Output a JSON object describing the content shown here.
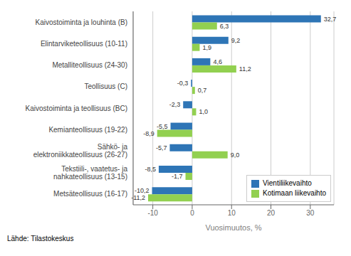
{
  "chart_data": {
    "type": "bar",
    "orientation": "horizontal",
    "categories": [
      "Kaivostoiminta ja louhinta (B)",
      "Elintarviketeollisuus (10-11)",
      "Metalliteollisuus (24-30)",
      "Teollisuus (C)",
      "Kaivostoiminta ja teollisuus (BC)",
      "Kemianteollisuus (19-22)",
      "Sähkö- ja\nelektroniikkateollisuus (26-27)",
      "Tekstiili-, vaatetus- ja\nnahkateollisuus (13-15)",
      "Metsäteollisuus (16-17)"
    ],
    "series": [
      {
        "name": "Vientiliikevaihto",
        "color": "#2e75b6",
        "values": [
          32.7,
          9.2,
          4.6,
          -0.3,
          -2.3,
          -5.5,
          -5.7,
          -8.5,
          -10.2
        ],
        "value_labels": [
          "32,7",
          "9,2",
          "4,6",
          "-0,3",
          "-2,3",
          "-5,5",
          "-5,7",
          "-8,5",
          "-10,2"
        ]
      },
      {
        "name": "Kotimaan liikevaihto",
        "color": "#92d050",
        "values": [
          6.3,
          1.9,
          11.2,
          0.7,
          1.0,
          -8.9,
          9.0,
          -1.7,
          -11.2
        ],
        "value_labels": [
          "6,3",
          "1,9",
          "11,2",
          "0,7",
          "1,0",
          "-8,9",
          "9,0",
          "-1,7",
          "-11,2"
        ]
      }
    ],
    "xlabel": "Vuosimuutos, %",
    "xlim": [
      -15,
      36
    ],
    "xticks": [
      -10,
      0,
      10,
      20,
      30
    ],
    "grid": true,
    "legend": "lower right",
    "data_labels": true,
    "annotations": [
      "Lähde: Tilastokeskus"
    ]
  }
}
